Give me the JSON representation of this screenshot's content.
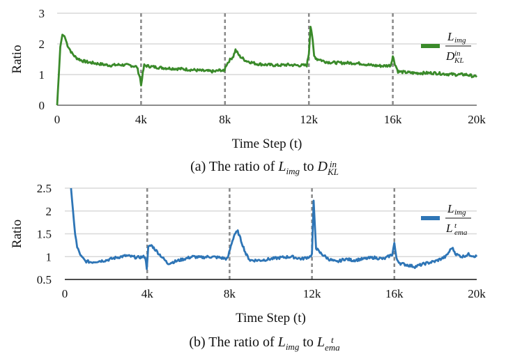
{
  "chart_data": [
    {
      "type": "line",
      "id": "a",
      "xlabel": "Time Step (t)",
      "ylabel": "Ratio",
      "xlim": [
        0,
        20000
      ],
      "ylim": [
        0,
        3
      ],
      "x_ticks": [
        0,
        4000,
        8000,
        12000,
        16000,
        20000
      ],
      "x_tick_labels": [
        "0",
        "4k",
        "8k",
        "12k",
        "16k",
        "20k"
      ],
      "y_ticks": [
        0,
        1,
        2,
        3
      ],
      "y_tick_labels": [
        "0",
        "1",
        "2",
        "3"
      ],
      "grid": true,
      "vlines": [
        4000,
        8000,
        12000,
        16000
      ],
      "legend_position": "top-right",
      "legend": {
        "numerator": "L",
        "numerator_sub": "img",
        "denominator": "D",
        "denominator_sup": "in",
        "denominator_sub": "KL"
      },
      "color": "#3a8a2a",
      "series": [
        {
          "name": "L_img / D_KL^in",
          "x": [
            0,
            150,
            250,
            350,
            500,
            700,
            900,
            1200,
            1500,
            2000,
            2500,
            3000,
            3500,
            3800,
            3950,
            4000,
            4050,
            4150,
            4300,
            4600,
            5000,
            5500,
            6000,
            6500,
            7000,
            7500,
            7800,
            7950,
            8050,
            8200,
            8400,
            8500,
            8700,
            9000,
            9500,
            10000,
            10500,
            11000,
            11500,
            11900,
            12000,
            12080,
            12150,
            12250,
            12400,
            12500,
            12650,
            12800,
            13000,
            13500,
            14000,
            14500,
            15000,
            15500,
            15900,
            16000,
            16100,
            16250,
            16500,
            17000,
            17500,
            18000,
            18500,
            19000,
            19500,
            20000
          ],
          "y": [
            0,
            1.9,
            2.3,
            2.25,
            1.95,
            1.7,
            1.55,
            1.45,
            1.4,
            1.35,
            1.3,
            1.32,
            1.3,
            1.25,
            0.9,
            0.65,
            0.9,
            1.3,
            1.28,
            1.25,
            1.22,
            1.2,
            1.18,
            1.15,
            1.12,
            1.1,
            1.15,
            1.1,
            1.3,
            1.45,
            1.6,
            1.8,
            1.6,
            1.45,
            1.35,
            1.32,
            1.3,
            1.32,
            1.3,
            1.3,
            1.7,
            2.6,
            2.3,
            1.6,
            1.5,
            1.5,
            1.45,
            1.42,
            1.4,
            1.38,
            1.38,
            1.36,
            1.3,
            1.28,
            1.3,
            1.6,
            1.35,
            1.1,
            1.08,
            1.05,
            1.05,
            1.05,
            1.02,
            1.0,
            1.0,
            0.92
          ]
        }
      ]
    },
    {
      "type": "line",
      "id": "b",
      "xlabel": "Time Step (t)",
      "ylabel": "Ratio",
      "xlim": [
        0,
        20000
      ],
      "ylim": [
        0.5,
        2.5
      ],
      "x_ticks": [
        0,
        4000,
        8000,
        12000,
        16000,
        20000
      ],
      "x_tick_labels": [
        "0",
        "4k",
        "8k",
        "12k",
        "16k",
        "20k"
      ],
      "y_ticks": [
        0.5,
        1,
        1.5,
        2,
        2.5
      ],
      "y_tick_labels": [
        "0.5",
        "1",
        "1.5",
        "2",
        "2.5"
      ],
      "grid": true,
      "vlines": [
        4000,
        8000,
        12000,
        16000
      ],
      "legend_position": "top-right",
      "legend": {
        "numerator": "L",
        "numerator_sub": "img",
        "denominator": "L",
        "denominator_sup": "t",
        "denominator_sub": "ema"
      },
      "color": "#2e75b6",
      "series": [
        {
          "name": "L_img / L_ema^t",
          "x": [
            300,
            400,
            500,
            600,
            700,
            800,
            1000,
            1300,
            1600,
            2000,
            2500,
            3000,
            3500,
            3900,
            3980,
            4050,
            4200,
            4400,
            4700,
            5000,
            5400,
            5800,
            6200,
            6600,
            7000,
            7500,
            7900,
            8100,
            8250,
            8400,
            8600,
            8800,
            9000,
            9500,
            10000,
            10500,
            11000,
            11500,
            11900,
            12000,
            12080,
            12200,
            12350,
            12500,
            12800,
            13200,
            13600,
            14000,
            14500,
            15000,
            15500,
            15900,
            16000,
            16100,
            16300,
            16600,
            17000,
            17500,
            18000,
            18500,
            18800,
            19000,
            19300,
            19600,
            20000
          ],
          "y": [
            2.5,
            2.0,
            1.5,
            1.2,
            1.1,
            1.0,
            0.9,
            0.88,
            0.9,
            0.92,
            0.98,
            1.02,
            0.98,
            1.0,
            0.75,
            1.2,
            1.25,
            1.15,
            1.0,
            0.85,
            0.9,
            0.95,
            1.0,
            0.98,
            1.0,
            0.98,
            0.95,
            1.3,
            1.5,
            1.55,
            1.3,
            1.05,
            0.92,
            0.92,
            0.95,
            0.98,
            1.0,
            0.95,
            1.0,
            1.05,
            2.2,
            1.2,
            1.1,
            1.05,
            0.95,
            0.88,
            0.95,
            0.92,
            0.95,
            0.98,
            0.95,
            1.05,
            1.3,
            0.95,
            0.85,
            0.82,
            0.78,
            0.85,
            0.9,
            1.0,
            1.2,
            1.05,
            1.0,
            1.05,
            1.0
          ]
        }
      ]
    }
  ],
  "captions": {
    "a": {
      "prefix": "(a) The ratio of ",
      "term1": "L",
      "term1_sub": "img",
      "middle": " to ",
      "term2": "D",
      "term2_sup": "in",
      "term2_sub": "KL"
    },
    "b": {
      "prefix": "(b) The ratio of ",
      "term1": "L",
      "term1_sub": "img",
      "middle": " to ",
      "term2": "L",
      "term2_sup": "t",
      "term2_sub": "ema"
    }
  }
}
